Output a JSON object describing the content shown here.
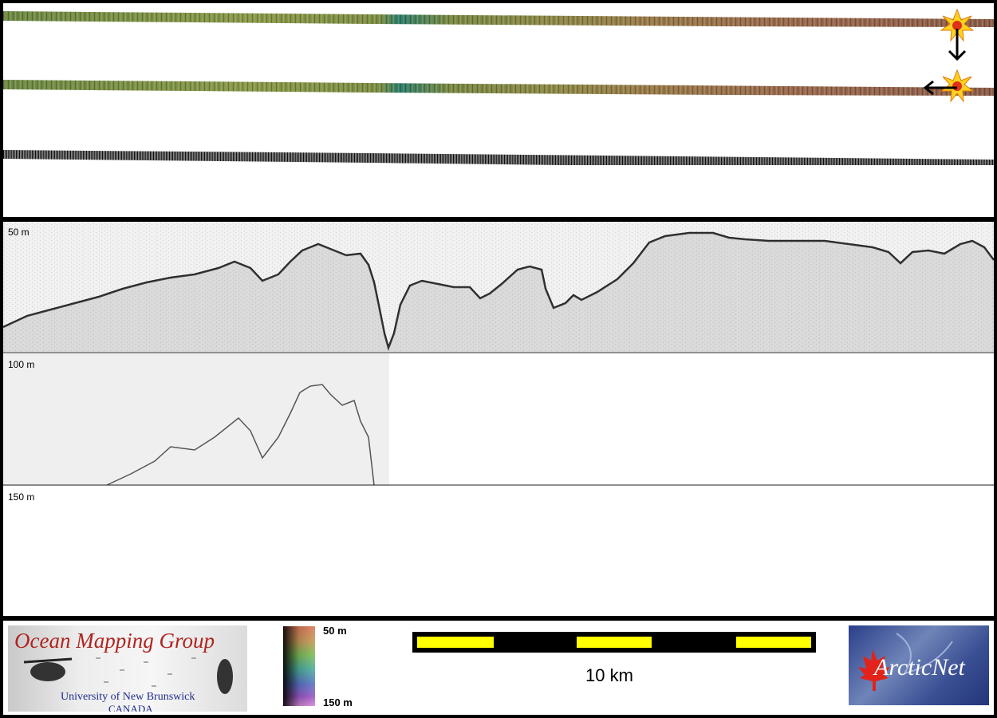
{
  "profile": {
    "depth_labels": [
      "50 m",
      "100 m",
      "150 m"
    ]
  },
  "footer": {
    "omg_logo": {
      "title": "Ocean Mapping Group",
      "university": "University of New Brunswick",
      "country": "CANADA"
    },
    "colorbar": {
      "top_label": "50 m",
      "bottom_label": "150 m"
    },
    "scalebar": {
      "label": "10 km",
      "colors": {
        "bar": "#000000",
        "segment": "#ffff00"
      }
    },
    "arctic_logo": {
      "text": "ArcticNet"
    }
  },
  "swath": {
    "icons": [
      "sun-marker-icon",
      "arrow-down-icon",
      "arrow-left-icon"
    ]
  }
}
